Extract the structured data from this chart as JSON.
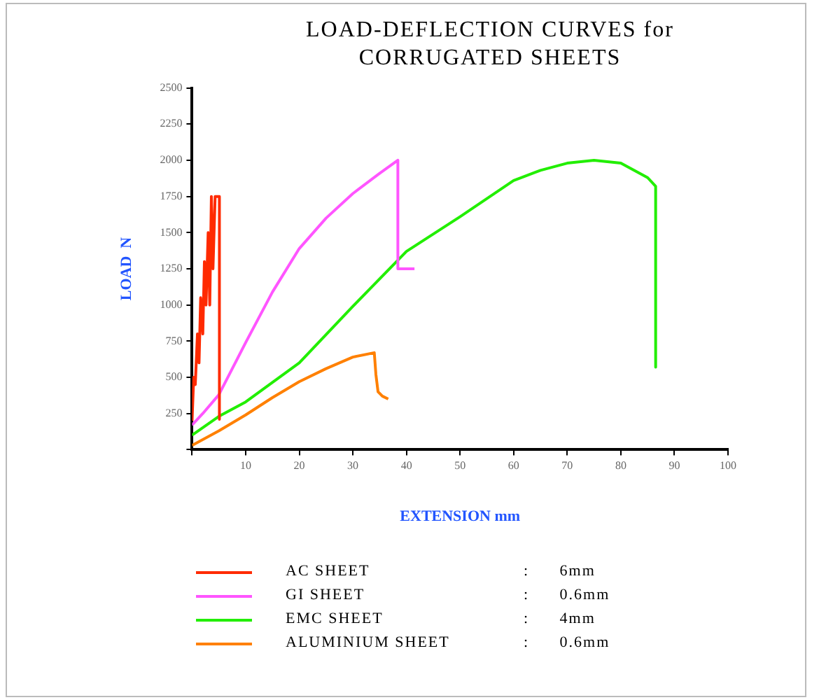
{
  "chart_data": {
    "type": "line",
    "title": "LOAD-DEFLECTION CURVES for CORRUGATED SHEETS",
    "xlabel": "EXTENSION mm",
    "ylabel": "LOAD  N",
    "xlim": [
      0,
      100
    ],
    "xticks": [
      {
        "value": 0,
        "label": null
      },
      10,
      20,
      30,
      40,
      50,
      60,
      70,
      80,
      90,
      100
    ],
    "ylim": [
      0,
      2500
    ],
    "yticks": [
      {
        "value": 0,
        "label": null
      },
      250,
      500,
      750,
      1000,
      1250,
      1500,
      1750,
      2000,
      2250,
      2500
    ],
    "grid": false,
    "legend": "bottom",
    "marker": "none",
    "line_style": "solid",
    "annotations": [
      ": 6mm",
      ": 0.6mm",
      ": 4mm",
      ": 0.6mm"
    ],
    "series": [
      {
        "name": "AC SHEET",
        "color": "#ff2a00",
        "x": [
          0,
          0.3,
          0.6,
          1,
          1.3,
          1.6,
          2,
          2.3,
          2.6,
          3,
          3.3,
          3.6,
          3.9,
          4.3,
          4.6,
          5.1,
          5.1
        ],
        "values": [
          200,
          500,
          450,
          800,
          600,
          1050,
          800,
          1300,
          1000,
          1500,
          1000,
          1750,
          1250,
          1750,
          1750,
          1750,
          210
        ]
      },
      {
        "name": "GI SHEET",
        "color": "#ff55ff",
        "x": [
          0,
          2,
          5,
          10,
          15,
          20,
          25,
          30,
          35,
          38.4,
          38.4,
          41.5
        ],
        "values": [
          170,
          250,
          380,
          740,
          1090,
          1390,
          1600,
          1770,
          1910,
          2000,
          1250,
          1250
        ]
      },
      {
        "name": "EMC SHEET",
        "color": "#22ee00",
        "x": [
          0,
          5,
          10,
          20,
          30,
          40,
          50,
          60,
          65,
          70,
          75,
          80,
          85,
          86.5,
          86.5
        ],
        "values": [
          100,
          230,
          330,
          600,
          990,
          1370,
          1610,
          1860,
          1930,
          1980,
          2000,
          1980,
          1880,
          1820,
          570
        ]
      },
      {
        "name": "ALUMINIUM SHEET",
        "color": "#ff8000",
        "x": [
          0,
          5,
          10,
          15,
          20,
          25,
          30,
          34,
          34.3,
          34.7,
          35.5,
          36.6
        ],
        "values": [
          30,
          130,
          240,
          360,
          470,
          560,
          640,
          670,
          520,
          400,
          370,
          350
        ]
      }
    ]
  }
}
